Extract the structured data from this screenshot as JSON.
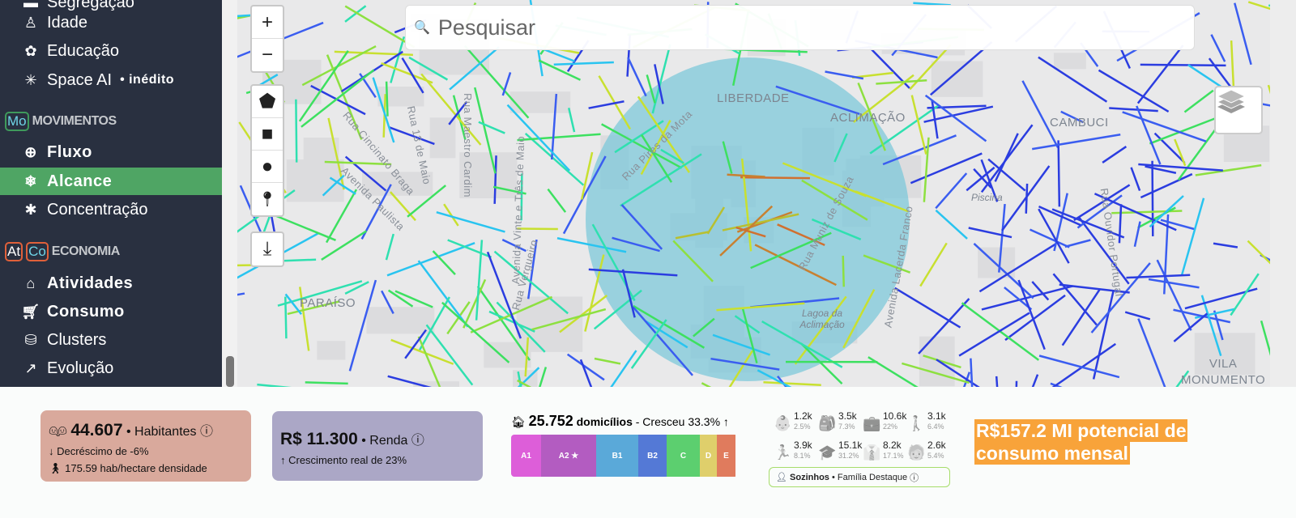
{
  "sidebar": {
    "items": [
      {
        "label": "Segregação",
        "icon": "segregation-icon",
        "glyph": "▬"
      },
      {
        "label": "Idade",
        "icon": "person-cane-icon",
        "glyph": "🚶"
      },
      {
        "label": "Educação",
        "icon": "education-icon",
        "glyph": "✿"
      },
      {
        "label": "Space AI",
        "icon": "sparkle-icon",
        "glyph": "✳",
        "tag": "• inédito"
      },
      {
        "label": "Fluxo",
        "icon": "globe-icon",
        "glyph": "🌐"
      },
      {
        "label": "Alcance",
        "icon": "network-icon",
        "glyph": "❄"
      },
      {
        "label": "Concentração",
        "icon": "asterisk-icon",
        "glyph": "✱"
      },
      {
        "label": "Atividades",
        "icon": "bank-icon",
        "glyph": "🏛"
      },
      {
        "label": "Consumo",
        "icon": "cart-icon",
        "glyph": "🛒"
      },
      {
        "label": "Clusters",
        "icon": "coins-icon",
        "glyph": "⛁"
      },
      {
        "label": "Evolução",
        "icon": "trend-up-icon",
        "glyph": "↗"
      }
    ],
    "sections": [
      {
        "label": "MOVIMENTOS",
        "badges": [
          "Mo"
        ]
      },
      {
        "label": "ECONOMIA",
        "badges": [
          "At",
          "Co"
        ]
      }
    ],
    "active": "Alcance",
    "active_color": "#4fa564"
  },
  "map": {
    "search_placeholder": "Pesquisar",
    "controls": {
      "zoom_in": "+",
      "zoom_out": "−"
    },
    "draw_tools": [
      "polygon",
      "rectangle",
      "circle",
      "marker"
    ],
    "labels": {
      "liberdade": "LIBERDADE",
      "aclimacao": "ACLIMAÇÃO",
      "cambuci": "CAMBUCI",
      "paraiso": "PARAÍSO",
      "piscina": "Piscina",
      "lagoa1": "Lagoa da",
      "lagoa2": "Aclimação",
      "vila1": "VILA",
      "vila2": "MONUMENTO"
    },
    "streets": [
      "Rua Cincinato Braga",
      "Avenida Paulista",
      "Rua 13 de Maio",
      "Rua Maestro Cardim",
      "Avenida Vinte e Três de Maio",
      "Rua Vergueiro",
      "Rua Pires da Mota",
      "Rua Muniz de Souza",
      "Avenida Lacerda Franco",
      "Rua Ouvidor Portugal"
    ],
    "circle_color": "#7ec8d9"
  },
  "stats": {
    "population": {
      "value": "44.607",
      "label": "• Habitantes",
      "change": "↓ Decréscimo de -6%",
      "density": "175.59 hab/hectare densidade",
      "color": "#d9a99c"
    },
    "income": {
      "value": "R$ 11.300",
      "label": "• Renda",
      "change": "↑ Crescimento real de 23%",
      "color": "#aba7c6"
    },
    "households": {
      "value": "25.752",
      "label": "domicílios",
      "change": "- Cresceu 33.3% ↑",
      "classes": [
        {
          "label": "A1",
          "color": "#dd5ed9",
          "w": 37
        },
        {
          "label": "A2 ★",
          "color": "#b35cc1",
          "w": 68
        },
        {
          "label": "B1",
          "color": "#5aa9d9",
          "w": 52
        },
        {
          "label": "B2",
          "color": "#5479d6",
          "w": 35
        },
        {
          "label": "C",
          "color": "#5ccf6f",
          "w": 41
        },
        {
          "label": "D",
          "color": "#dfcf6b",
          "w": 21
        },
        {
          "label": "E",
          "color": "#e07b5d",
          "w": 23
        }
      ]
    },
    "age_groups": [
      {
        "icon": "baby-icon",
        "glyph": "👶",
        "value": "1.2k",
        "pct": "2.5%"
      },
      {
        "icon": "child-backpack-icon",
        "glyph": "🎒",
        "value": "3.5k",
        "pct": "7.3%"
      },
      {
        "icon": "worker-icon",
        "glyph": "💼",
        "value": "10.6k",
        "pct": "22%"
      },
      {
        "icon": "person-icon",
        "glyph": "🚶",
        "value": "3.1k",
        "pct": "6.4%"
      },
      {
        "icon": "student-icon",
        "glyph": "🏃",
        "value": "3.9k",
        "pct": "8.1%"
      },
      {
        "icon": "graduate-icon",
        "glyph": "🎓",
        "value": "15.1k",
        "pct": "31.2%"
      },
      {
        "icon": "adult-tie-icon",
        "glyph": "👔",
        "value": "8.2k",
        "pct": "17.1%"
      },
      {
        "icon": "elderly-icon",
        "glyph": "🧓",
        "value": "2.6k",
        "pct": "5.4%"
      }
    ],
    "family": {
      "label": "Sozinhos",
      "sub": "• Família Destaque"
    },
    "potential": "R$157.2 MI potencial de consumo mensal"
  }
}
